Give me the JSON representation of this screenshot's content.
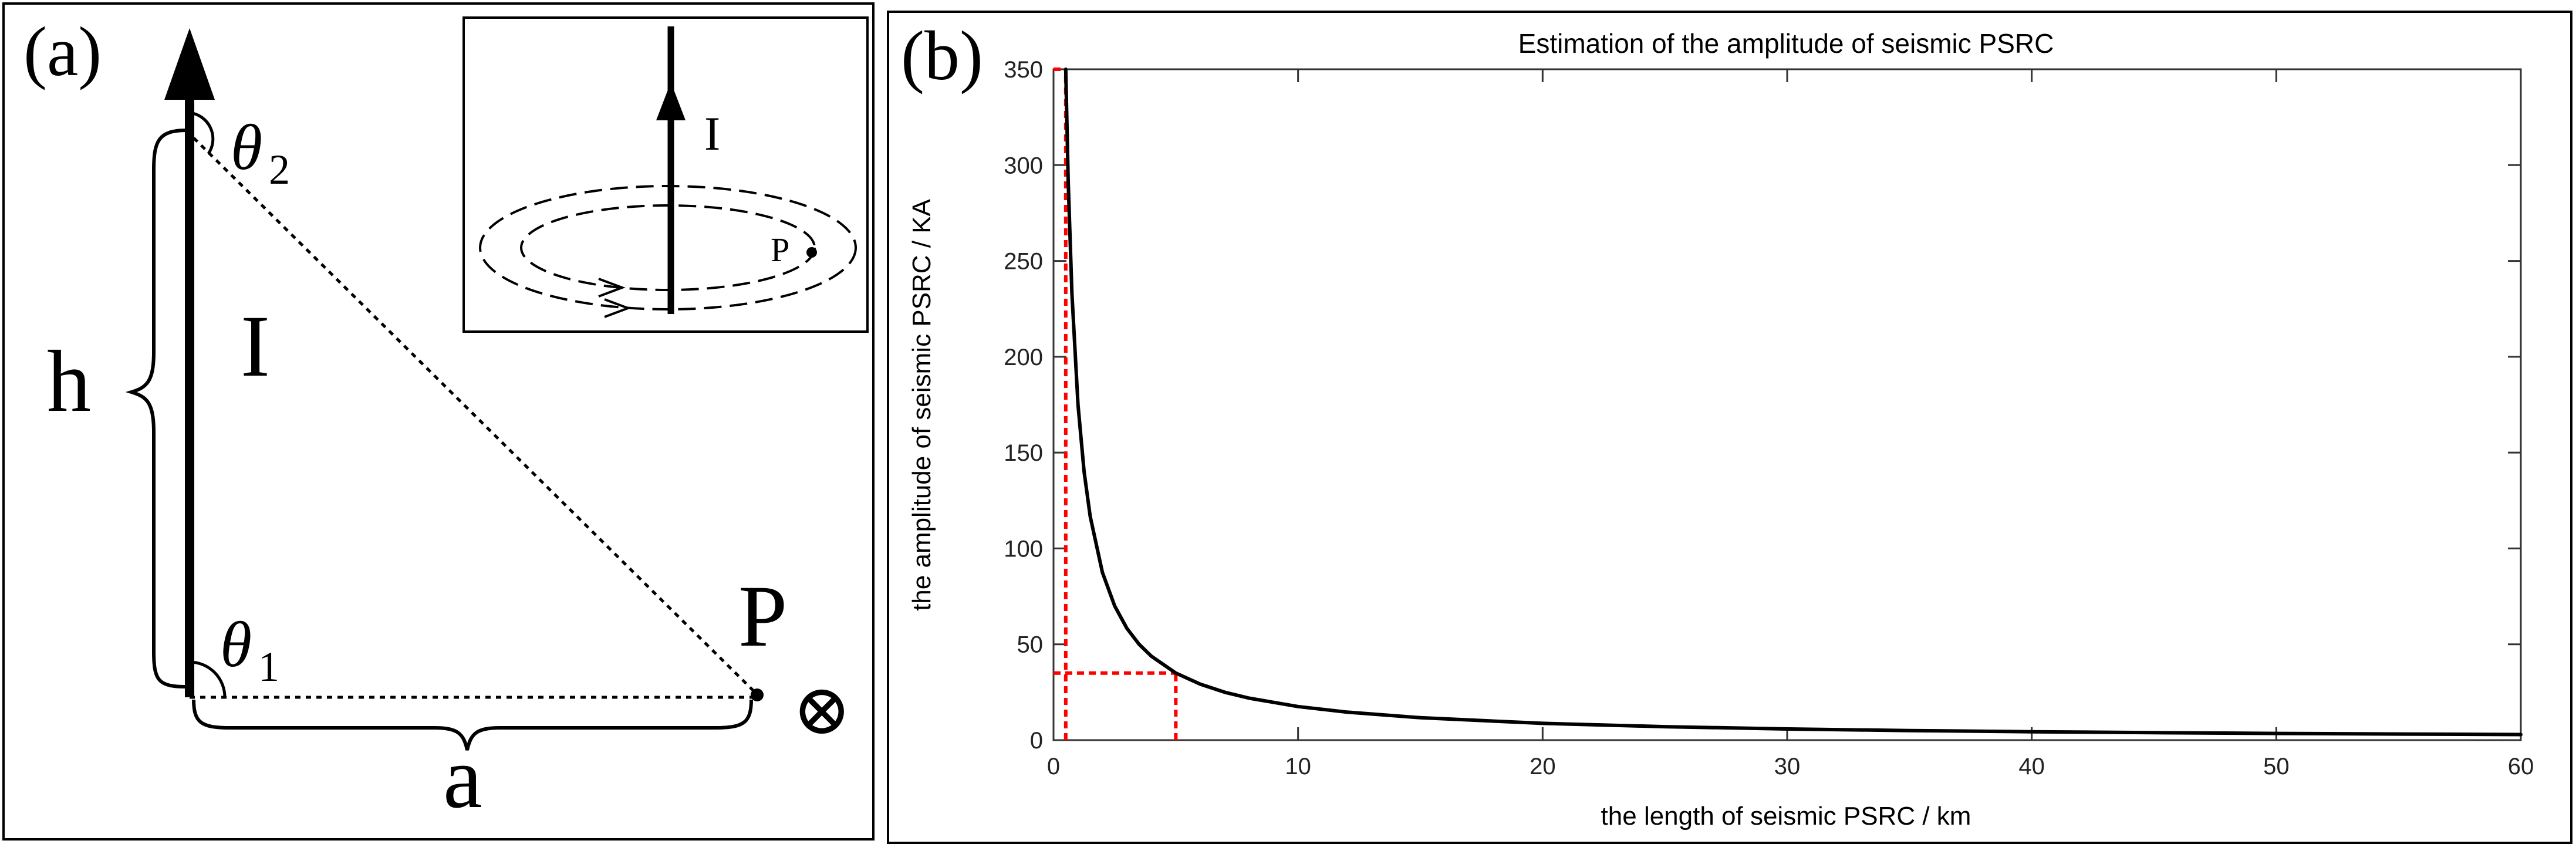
{
  "panel_a": {
    "label": "(a)",
    "current_label": "I",
    "height_label": "h",
    "base_label": "a",
    "point_label": "P",
    "theta1_symbol": "θ",
    "theta1_subscript": "1",
    "theta2_symbol": "θ",
    "theta2_subscript": "2",
    "field_symbol": "⊗",
    "inset": {
      "current_label": "I",
      "point_label": "P"
    }
  },
  "panel_b": {
    "label": "(b)"
  },
  "chart_data": {
    "type": "line",
    "title": "Estimation of the amplitude of seismic PSRC",
    "xlabel": "the length of seismic PSRC / km",
    "ylabel": "the amplitude of seismic PSRC / KA",
    "xlim": [
      0,
      60
    ],
    "ylim": [
      0,
      350
    ],
    "xticks": [
      0,
      10,
      20,
      30,
      40,
      50,
      60
    ],
    "yticks": [
      0,
      50,
      100,
      150,
      200,
      250,
      300,
      350
    ],
    "grid": false,
    "series": [
      {
        "name": "amplitude",
        "color": "#000000",
        "x": [
          0.5,
          0.6,
          0.75,
          1,
          1.25,
          1.5,
          2,
          2.5,
          3,
          3.5,
          4,
          5,
          6,
          7,
          8,
          10,
          12,
          15,
          20,
          25,
          30,
          35,
          40,
          45,
          50,
          55,
          60
        ],
        "y": [
          350,
          291.7,
          233.3,
          175,
          140,
          116.7,
          87.5,
          70,
          58.3,
          50,
          43.8,
          35,
          29.2,
          25,
          21.9,
          17.5,
          14.6,
          11.7,
          8.75,
          7,
          5.83,
          5,
          4.38,
          3.89,
          3.5,
          3.18,
          2.92
        ]
      }
    ],
    "reference_lines": [
      {
        "name": "ref-vertical-0.5km",
        "color": "#ff0000",
        "style": "dotted",
        "from": [
          0.5,
          0
        ],
        "to": [
          0.5,
          350
        ]
      },
      {
        "name": "ref-horizontal-350KA",
        "color": "#ff0000",
        "style": "dotted",
        "from": [
          0,
          350
        ],
        "to": [
          0.5,
          350
        ]
      },
      {
        "name": "ref-vertical-5km",
        "color": "#ff0000",
        "style": "dotted",
        "from": [
          5,
          0
        ],
        "to": [
          5,
          35
        ]
      },
      {
        "name": "ref-horizontal-35KA",
        "color": "#ff0000",
        "style": "dotted",
        "from": [
          0,
          35
        ],
        "to": [
          5,
          35
        ]
      }
    ]
  }
}
